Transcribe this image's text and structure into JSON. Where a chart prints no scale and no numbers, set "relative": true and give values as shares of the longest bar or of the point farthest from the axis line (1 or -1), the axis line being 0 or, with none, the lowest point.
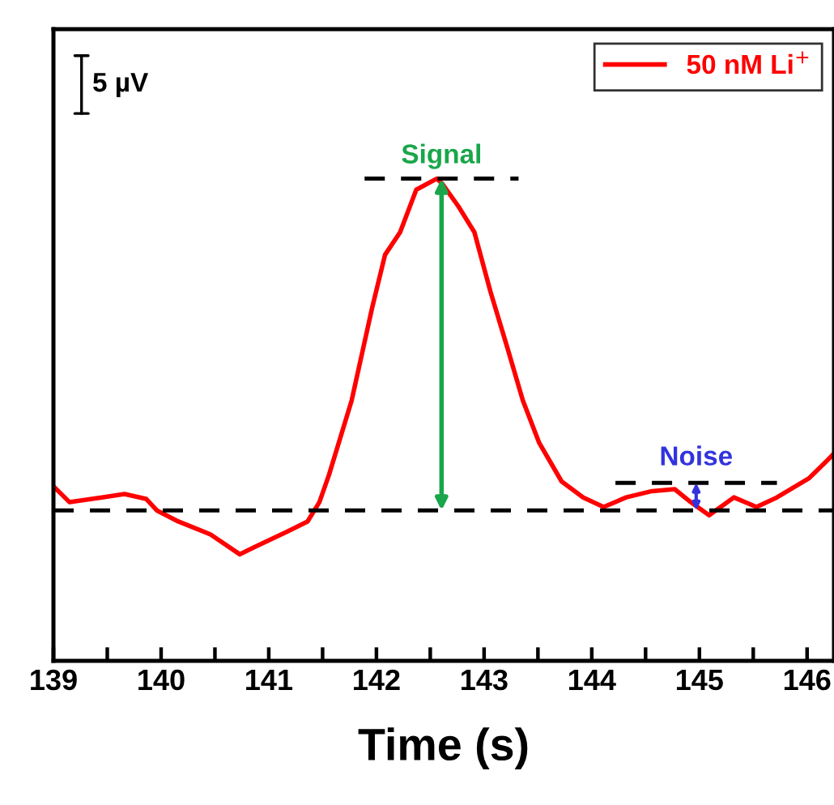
{
  "chart_data": {
    "type": "line",
    "xlabel": "Time (s)",
    "relative": true,
    "xlim": [
      139,
      146.25
    ],
    "xticks": [
      139,
      {
        "value": 139.5,
        "label": null
      },
      140,
      {
        "value": 140.5,
        "label": null
      },
      141,
      {
        "value": 141.5,
        "label": null
      },
      142,
      {
        "value": 142.5,
        "label": null
      },
      143,
      {
        "value": 143.5,
        "label": null
      },
      144,
      {
        "value": 144.5,
        "label": null
      },
      145,
      {
        "value": 145.5,
        "label": null
      },
      146
    ],
    "tick_labels": "x",
    "grid": false,
    "legend": "top right",
    "marker": "none",
    "series": [
      {
        "name": "50 nM Li$^{+}$",
        "color": "#ff0000",
        "line_style": "solid",
        "x": [
          139.0,
          139.15,
          139.45,
          139.66,
          139.86,
          139.96,
          140.16,
          140.46,
          140.73,
          140.86,
          141.17,
          141.36,
          141.47,
          141.56,
          141.77,
          141.96,
          142.08,
          142.22,
          142.37,
          142.56,
          142.61,
          142.76,
          142.91,
          143.06,
          143.21,
          143.36,
          143.51,
          143.72,
          143.92,
          144.11,
          144.32,
          144.56,
          144.77,
          144.92,
          145.09,
          145.32,
          145.53,
          145.72,
          146.02,
          146.13,
          146.25
        ],
        "values": [
          0.362,
          0.329,
          0.339,
          0.346,
          0.336,
          0.312,
          0.289,
          0.262,
          0.221,
          0.235,
          0.268,
          0.289,
          0.329,
          0.386,
          0.54,
          0.732,
          0.842,
          0.889,
          0.977,
          1.0,
          0.99,
          0.943,
          0.889,
          0.765,
          0.654,
          0.54,
          0.453,
          0.372,
          0.339,
          0.319,
          0.339,
          0.352,
          0.356,
          0.329,
          0.302,
          0.339,
          0.319,
          0.339,
          0.379,
          0.403,
          0.43
        ]
      },
      {
        "type": "line",
        "color": "#000000",
        "line_style": "dashed",
        "x": [
          139,
          146.25
        ],
        "values": [
          0.312,
          0.312
        ]
      },
      {
        "type": "line",
        "color": "#000000",
        "line_style": "dashed",
        "x": [
          141.89,
          143.32
        ],
        "values": [
          1.0,
          1.0
        ]
      },
      {
        "type": "line",
        "color": "#000000",
        "line_style": "dashed",
        "x": [
          144.22,
          145.72
        ],
        "values": [
          0.369,
          0.369
        ]
      }
    ],
    "annotations": [
      "Signal",
      "Noise",
      "5 µV"
    ]
  }
}
